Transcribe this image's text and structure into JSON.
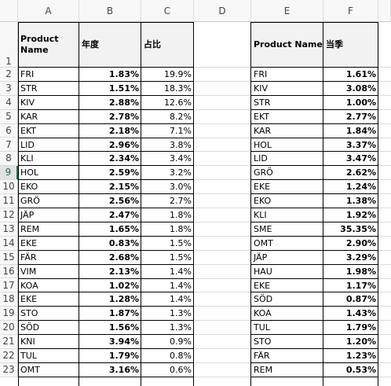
{
  "columns": [
    "A",
    "B",
    "C",
    "D",
    "E",
    "F"
  ],
  "headers": {
    "A": "Product Name",
    "B": "年度",
    "C": "占比",
    "E": "Product Name",
    "F": "当季"
  },
  "row_numbers": [
    "1",
    "2",
    "3",
    "4",
    "5",
    "6",
    "7",
    "8",
    "9",
    "10",
    "11",
    "12",
    "13",
    "14",
    "15",
    "16",
    "17",
    "18",
    "19",
    "20",
    "21",
    "22",
    "23"
  ],
  "selected_row": "9",
  "rows": [
    {
      "a": "FRI",
      "b": "1.83%",
      "c": "19.9%",
      "e": "FRI",
      "f": "1.61%"
    },
    {
      "a": "STR",
      "b": "1.51%",
      "c": "18.3%",
      "e": "KIV",
      "f": "3.08%"
    },
    {
      "a": "KIV",
      "b": "2.88%",
      "c": "12.6%",
      "e": "STR",
      "f": "1.00%"
    },
    {
      "a": "KAR",
      "b": "2.78%",
      "c": "8.2%",
      "e": "EKT",
      "f": "2.77%"
    },
    {
      "a": "EKT",
      "b": "2.18%",
      "c": "7.1%",
      "e": "KAR",
      "f": "1.84%"
    },
    {
      "a": "LID",
      "b": "2.96%",
      "c": "3.8%",
      "e": "HOL",
      "f": "3.37%"
    },
    {
      "a": "KLI",
      "b": "2.34%",
      "c": "3.4%",
      "e": "LID",
      "f": "3.47%"
    },
    {
      "a": "HOL",
      "b": "2.59%",
      "c": "3.2%",
      "e": "GRÖ",
      "f": "2.62%"
    },
    {
      "a": "EKO",
      "b": "2.15%",
      "c": "3.0%",
      "e": "EKE",
      "f": "1.24%"
    },
    {
      "a": "GRÖ",
      "b": "2.56%",
      "c": "2.7%",
      "e": "EKO",
      "f": "1.38%"
    },
    {
      "a": "JÄP",
      "b": "2.47%",
      "c": "1.8%",
      "e": "KLI",
      "f": "1.92%"
    },
    {
      "a": "REM",
      "b": "1.65%",
      "c": "1.8%",
      "e": "SME",
      "f": "35.35%"
    },
    {
      "a": "EKE",
      "b": "0.83%",
      "c": "1.5%",
      "e": "OMT",
      "f": "2.90%"
    },
    {
      "a": "FÄR",
      "b": "2.68%",
      "c": "1.5%",
      "e": "JÄP",
      "f": "3.29%"
    },
    {
      "a": "VIM",
      "b": "2.13%",
      "c": "1.4%",
      "e": "HAU",
      "f": "1.98%"
    },
    {
      "a": "KOA",
      "b": "1.02%",
      "c": "1.4%",
      "e": "EKE",
      "f": "1.17%"
    },
    {
      "a": "EKE",
      "b": "1.28%",
      "c": "1.4%",
      "e": "SÖD",
      "f": "0.87%"
    },
    {
      "a": "STO",
      "b": "1.87%",
      "c": "1.3%",
      "e": "KOA",
      "f": "1.43%"
    },
    {
      "a": "SÖD",
      "b": "1.56%",
      "c": "1.3%",
      "e": "TUL",
      "f": "1.79%"
    },
    {
      "a": "KNI",
      "b": "3.94%",
      "c": "0.9%",
      "e": "STO",
      "f": "1.20%"
    },
    {
      "a": "TUL",
      "b": "1.79%",
      "c": "0.8%",
      "e": "FÄR",
      "f": "1.23%"
    },
    {
      "a": "OMT",
      "b": "3.16%",
      "c": "0.6%",
      "e": "REM",
      "f": "0.53%"
    }
  ]
}
